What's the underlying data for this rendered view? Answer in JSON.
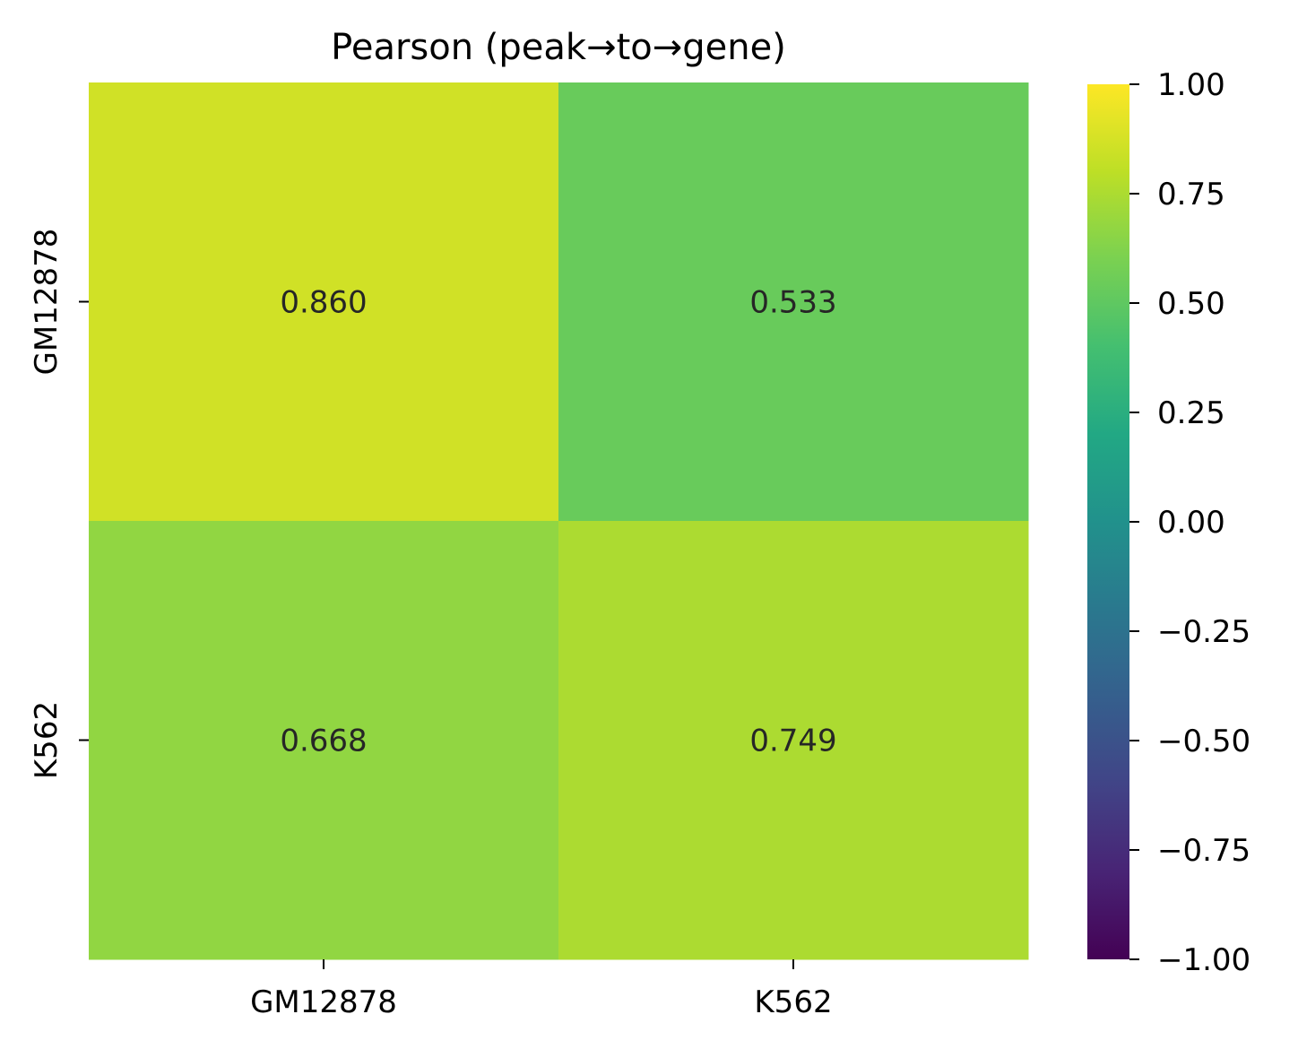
{
  "chart_data": {
    "type": "heatmap",
    "title": "Pearson (peak→to→gene)",
    "xlabel": "",
    "ylabel": "",
    "x_categories": [
      "GM12878",
      "K562"
    ],
    "y_categories": [
      "GM12878",
      "K562"
    ],
    "values": [
      [
        0.86,
        0.533
      ],
      [
        0.668,
        0.749
      ]
    ],
    "cell_labels": [
      [
        "0.860",
        "0.533"
      ],
      [
        "0.668",
        "0.749"
      ]
    ],
    "colormap": "viridis",
    "vmin": -1.0,
    "vmax": 1.0,
    "colorbar": {
      "ticks": [
        1.0,
        0.75,
        0.5,
        0.25,
        0.0,
        -0.25,
        -0.5,
        -0.75,
        -1.0
      ],
      "tick_labels": [
        "1.00",
        "0.75",
        "0.50",
        "0.25",
        "0.00",
        "−0.25",
        "−0.50",
        "−0.75",
        "−1.00"
      ]
    },
    "grid": false,
    "legend": "colorbar-right"
  }
}
